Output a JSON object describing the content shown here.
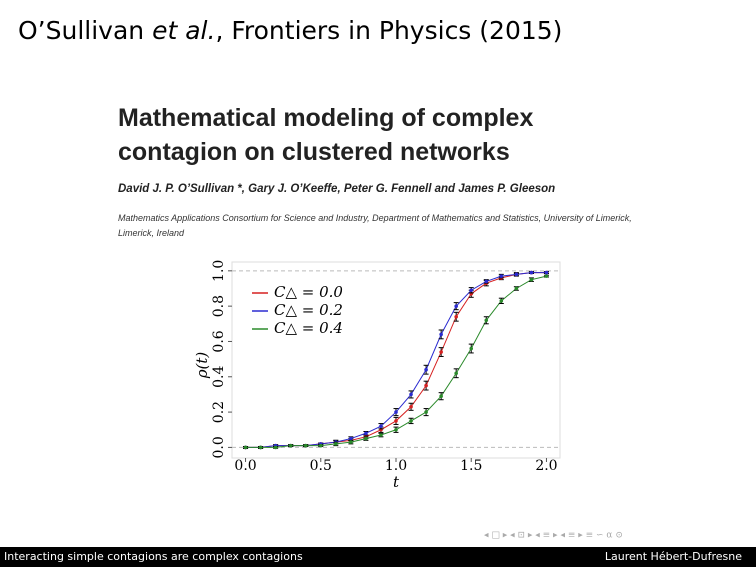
{
  "slide_title": [
    "O’Sullivan ",
    "et al.",
    ", Frontiers in Physics (2015)"
  ],
  "paper": {
    "title": [
      "Mathematical modeling of complex",
      "contagion on clustered networks"
    ],
    "authors": "David J. P. O’Sullivan *, Gary J. O’Keeffe, Peter G. Fennell and James P. Gleeson",
    "affiliation": "Mathematics Applications Consortium for Science and Industry, Department of Mathematics and Statistics, University of Limerick, Limerick, Ireland"
  },
  "chart_data": {
    "type": "line",
    "xlabel": "t",
    "ylabel": "ρ(t)",
    "x": [
      0,
      0.1,
      0.2,
      0.3,
      0.4,
      0.5,
      0.6,
      0.7,
      0.8,
      0.9,
      1.0,
      1.1,
      1.2,
      1.3,
      1.4,
      1.5,
      1.6,
      1.7,
      1.8,
      1.9,
      2.0
    ],
    "series": [
      {
        "name": "C△ = 0.0",
        "color": "#d62020",
        "values": [
          0,
          0,
          0.01,
          0.01,
          0.01,
          0.02,
          0.03,
          0.04,
          0.06,
          0.1,
          0.15,
          0.23,
          0.35,
          0.54,
          0.74,
          0.87,
          0.93,
          0.96,
          0.98,
          0.99,
          0.99
        ],
        "errors": [
          0.005,
          0.005,
          0.005,
          0.005,
          0.005,
          0.005,
          0.01,
          0.01,
          0.01,
          0.015,
          0.02,
          0.02,
          0.025,
          0.025,
          0.025,
          0.02,
          0.015,
          0.01,
          0.01,
          0.005,
          0.005
        ]
      },
      {
        "name": "C△ = 0.2",
        "color": "#2a2ad0",
        "values": [
          0,
          0,
          0.01,
          0.01,
          0.01,
          0.02,
          0.03,
          0.05,
          0.08,
          0.12,
          0.2,
          0.3,
          0.44,
          0.64,
          0.8,
          0.89,
          0.94,
          0.97,
          0.98,
          0.99,
          0.99
        ],
        "errors": [
          0.005,
          0.005,
          0.005,
          0.005,
          0.005,
          0.005,
          0.01,
          0.01,
          0.01,
          0.015,
          0.02,
          0.02,
          0.025,
          0.025,
          0.02,
          0.015,
          0.01,
          0.01,
          0.005,
          0.005,
          0.005
        ]
      },
      {
        "name": "C△ = 0.4",
        "color": "#2a8a2a",
        "values": [
          0,
          0,
          0,
          0.01,
          0.01,
          0.01,
          0.02,
          0.03,
          0.05,
          0.07,
          0.1,
          0.15,
          0.2,
          0.29,
          0.42,
          0.56,
          0.72,
          0.83,
          0.9,
          0.95,
          0.97
        ],
        "errors": [
          0.005,
          0.005,
          0.005,
          0.005,
          0.005,
          0.005,
          0.01,
          0.01,
          0.01,
          0.01,
          0.015,
          0.015,
          0.02,
          0.02,
          0.025,
          0.025,
          0.02,
          0.015,
          0.01,
          0.01,
          0.005
        ]
      }
    ],
    "xlim": [
      -0.09,
      2.09
    ],
    "xticks": [
      {
        "value": 0,
        "label": "0.0"
      },
      {
        "value": 0.5,
        "label": "0.5"
      },
      {
        "value": 1,
        "label": "1.0"
      },
      {
        "value": 1.5,
        "label": "1.5"
      },
      {
        "value": 2,
        "label": "2.0"
      }
    ],
    "ylim": [
      -0.06,
      1.05
    ],
    "yticks": [
      {
        "value": 0,
        "label": "0.0"
      },
      {
        "value": 0.2,
        "label": "0.2"
      },
      {
        "value": 0.4,
        "label": "0.4"
      },
      {
        "value": 0.6,
        "label": "0.6"
      },
      {
        "value": 0.8,
        "label": "0.8"
      },
      {
        "value": 1,
        "label": "1.0"
      }
    ],
    "legend": "upper left"
  },
  "footer": {
    "left": "Interacting simple contagions are complex contagions",
    "right": "Laurent Hébert-Dufresne"
  }
}
